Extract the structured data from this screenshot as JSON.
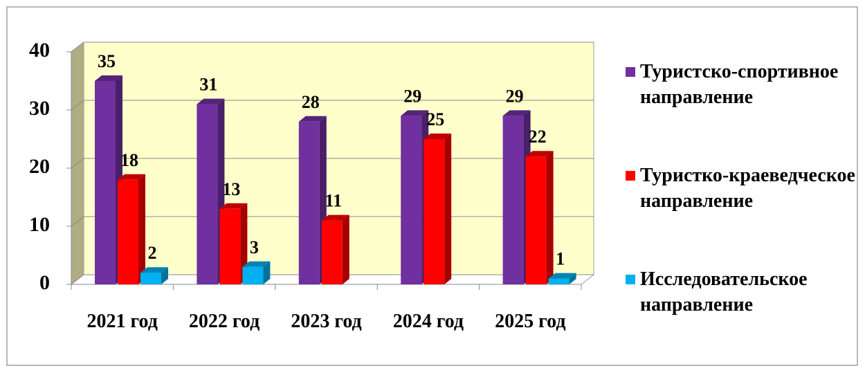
{
  "chart_data": {
    "type": "bar3d",
    "categories": [
      "2021 год",
      "2022 год",
      "2023 год",
      "2024 год",
      "2025 год"
    ],
    "series": [
      {
        "name": "Туристско-спортивное направление",
        "color": "#7030a0",
        "values": [
          35,
          31,
          28,
          29,
          29
        ]
      },
      {
        "name": "Туристко-краеведческое направление",
        "color": "#ff0000",
        "values": [
          18,
          13,
          11,
          25,
          22
        ]
      },
      {
        "name": "Исследовательское направление",
        "color": "#00b0f0",
        "values": [
          2,
          3,
          null,
          null,
          1
        ]
      }
    ],
    "ylim": [
      0,
      40
    ],
    "yticks": [
      0,
      10,
      20,
      30,
      40
    ],
    "grid": true,
    "legend": "right"
  }
}
